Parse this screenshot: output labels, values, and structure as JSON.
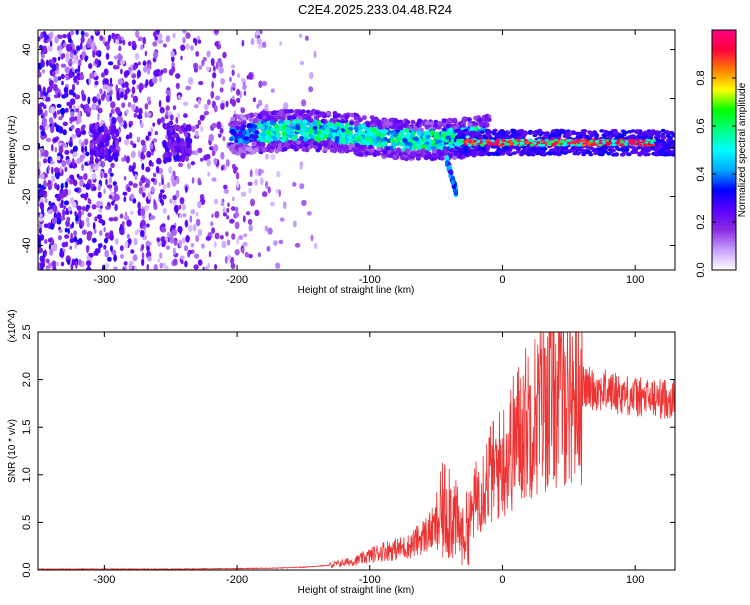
{
  "chart_data": [
    {
      "type": "heatmap",
      "title": "C2E4.2025.233.04.48.R24",
      "xlabel": "Height of straight line (km)",
      "ylabel": "Frequency (Hz)",
      "xlim": [
        -350,
        130
      ],
      "ylim": [
        -50,
        48
      ],
      "xticks": [
        -300,
        -200,
        -100,
        0,
        100
      ],
      "xtick_labels": [
        "-300",
        "-200",
        "-100",
        "0",
        "100"
      ],
      "yticks": [
        40,
        20,
        0,
        -20,
        -40
      ],
      "ytick_labels": [
        "40",
        "20",
        "0",
        "-20",
        "-40"
      ],
      "colorbar": {
        "label": "Normalized spectral amplitude",
        "range": [
          0,
          1
        ],
        "ticks": [
          0.0,
          0.2,
          0.4,
          0.6,
          0.8
        ],
        "tick_labels": [
          "0.0",
          "0.2",
          "0.4",
          "0.6",
          "0.8"
        ],
        "colormap": [
          "#ffffff",
          "#c8a0ff",
          "#8a2be2",
          "#5a00ff",
          "#0000ff",
          "#00aaff",
          "#00ffff",
          "#00ff80",
          "#00ff00",
          "#ffff00",
          "#ff8000",
          "#ff0040",
          "#ff0080"
        ]
      },
      "features": {
        "noise_region_x": [
          -350,
          -140
        ],
        "dense_band_x": [
          -205,
          -10
        ],
        "dense_band_freq": [
          0,
          10
        ],
        "side_trace": {
          "x": [
            -42,
            -35
          ],
          "freq": [
            -5,
            -18
          ]
        },
        "narrow_line_x": [
          -35,
          115
        ],
        "narrow_line_freq_center": 2,
        "high_amplitude_x": [
          -30,
          115
        ]
      }
    },
    {
      "type": "line",
      "xlabel": "Height of straight line (km)",
      "ylabel": "SNR (10 * v/v)",
      "y_multiplier": "(x10^4)",
      "xlim": [
        -350,
        130
      ],
      "ylim": [
        0,
        2.5
      ],
      "xticks": [
        -300,
        -200,
        -100,
        0,
        100
      ],
      "xtick_labels": [
        "-300",
        "-200",
        "-100",
        "0",
        "100"
      ],
      "yticks": [
        0.0,
        0.5,
        1.0,
        1.5,
        2.0,
        2.5
      ],
      "ytick_labels": [
        "0.0",
        "0.5",
        "1.0",
        "1.5",
        "2.0",
        "2.5"
      ],
      "color": "#ee3333",
      "series": [
        {
          "name": "SNR",
          "x": [
            -350,
            -300,
            -250,
            -200,
            -170,
            -150,
            -130,
            -110,
            -100,
            -90,
            -80,
            -70,
            -60,
            -50,
            -45,
            -40,
            -35,
            -30,
            -25,
            -20,
            -15,
            -10,
            -5,
            0,
            5,
            10,
            15,
            20,
            25,
            30,
            40,
            50,
            60,
            70,
            80,
            90,
            100,
            110,
            120,
            130
          ],
          "y": [
            0.01,
            0.01,
            0.01,
            0.015,
            0.02,
            0.03,
            0.05,
            0.1,
            0.15,
            0.2,
            0.22,
            0.25,
            0.35,
            0.45,
            0.6,
            0.7,
            0.5,
            0.35,
            0.5,
            0.75,
            0.9,
            1.0,
            1.05,
            1.15,
            1.25,
            1.4,
            1.5,
            1.6,
            1.65,
            1.75,
            1.85,
            1.9,
            1.92,
            1.9,
            1.88,
            1.85,
            1.82,
            1.8,
            1.8,
            1.8
          ]
        }
      ]
    }
  ]
}
